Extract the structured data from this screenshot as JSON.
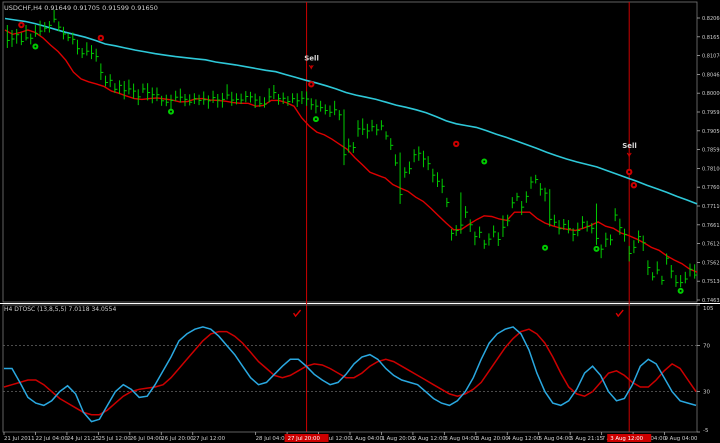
{
  "chart_data": {
    "type": "line",
    "main_header": "USDCHF,H4  0.91649 0.91705 0.91599 0.91650",
    "osc_header": "H4 DTOSC (13,8,5,5) 7.0118 34.0554",
    "price_axis": [
      "0.82060",
      "0.81655",
      "0.81070",
      "0.80465",
      "0.80000",
      "0.79595",
      "0.79050",
      "0.78595",
      "0.78100",
      "0.77605",
      "0.77110",
      "0.76615",
      "0.76120",
      "0.75625",
      "0.75130",
      "0.74635"
    ],
    "osc_axis": [
      "105",
      "70",
      "30",
      "-5"
    ],
    "time_labels": [
      "21 Jul 2011",
      "22 Jul 04:00",
      "24 Jul 21:25",
      "25 Jul 12:00",
      "26 Jul 04:00",
      "26 Jul 20:00",
      "27 Jul 12:00",
      "28 Jul 04:00",
      "28 Jul 20:00",
      "29 Jul 12:00",
      "1 Aug 04:00",
      "1 Aug 20:00",
      "2 Aug 12:00",
      "3 Aug 04:00",
      "3 Aug 20:00",
      "4 Aug 12:00",
      "5 Aug 04:00",
      "5 Aug 21:15",
      "7 Aug 12:00",
      "8 Aug 04:00",
      "9 Aug 04:00"
    ],
    "highlight_labels": [
      "27 Jul 20:00",
      "3 Aug 12:00"
    ],
    "sell_label": "Sell",
    "colors": {
      "background": "#000000",
      "bars": "#00cc00",
      "fast_ma": "#dd0000",
      "slow_ma": "#2ec8d8",
      "vline": "#cc0000",
      "dots": "#00cc00",
      "sell_arrow": "#cc0000",
      "osc_signal": "#cc0000",
      "osc_main": "#2aa8e0",
      "grid": "#666666"
    },
    "bars": [
      [
        0.8183,
        0.8226,
        0.8162
      ],
      [
        0.8187,
        0.8212,
        0.8165
      ],
      [
        0.8199,
        0.8215,
        0.8174
      ],
      [
        0.818,
        0.8205,
        0.817
      ],
      [
        0.819,
        0.8226,
        0.8183
      ],
      [
        0.8189,
        0.8202,
        0.8172
      ],
      [
        0.8202,
        0.8226,
        0.8193
      ],
      [
        0.8209,
        0.8238,
        0.8196
      ],
      [
        0.8217,
        0.8234,
        0.8206
      ],
      [
        0.8225,
        0.8237,
        0.8205
      ],
      [
        0.8242,
        0.8268,
        0.8233
      ],
      [
        0.822,
        0.8236,
        0.8208
      ],
      [
        0.8201,
        0.8221,
        0.8186
      ],
      [
        0.8191,
        0.8203,
        0.8181
      ],
      [
        0.8186,
        0.8205,
        0.8172
      ],
      [
        0.816,
        0.8185,
        0.8144
      ],
      [
        0.8146,
        0.8162,
        0.8134
      ],
      [
        0.8153,
        0.8178,
        0.8141
      ],
      [
        0.8147,
        0.817,
        0.8131
      ],
      [
        0.8138,
        0.816,
        0.8124
      ],
      [
        0.8094,
        0.8119,
        0.8073
      ],
      [
        0.8066,
        0.8085,
        0.8055
      ],
      [
        0.8072,
        0.8089,
        0.8053
      ],
      [
        0.8047,
        0.8064,
        0.8037
      ],
      [
        0.8058,
        0.8072,
        0.8034
      ],
      [
        0.8043,
        0.807,
        0.8019
      ],
      [
        0.8048,
        0.8074,
        0.8033
      ],
      [
        0.8042,
        0.8063,
        0.8021
      ],
      [
        0.8026,
        0.8047,
        0.8003
      ],
      [
        0.8048,
        0.8063,
        0.8037
      ],
      [
        0.8038,
        0.8064,
        0.8016
      ],
      [
        0.8032,
        0.8052,
        0.8008
      ],
      [
        0.8032,
        0.8052,
        0.8014
      ],
      [
        0.8015,
        0.8029,
        0.8001
      ],
      [
        0.8011,
        0.8032,
        0.8
      ],
      [
        0.8016,
        0.8032,
        0.7991
      ],
      [
        0.8025,
        0.8043,
        0.8014
      ],
      [
        0.8025,
        0.8049,
        0.801
      ],
      [
        0.8019,
        0.8034,
        0.8
      ],
      [
        0.8011,
        0.8033,
        0.8002
      ],
      [
        0.8021,
        0.8036,
        0.8006
      ],
      [
        0.8016,
        0.8032,
        0.8003
      ],
      [
        0.8018,
        0.8041,
        0.8004
      ],
      [
        0.8015,
        0.803,
        0.7993
      ],
      [
        0.8024,
        0.8043,
        0.8009
      ],
      [
        0.8017,
        0.8034,
        0.7996
      ],
      [
        0.8019,
        0.8037,
        0.7996
      ],
      [
        0.8031,
        0.8061,
        0.8019
      ],
      [
        0.8017,
        0.804,
        0.8001
      ],
      [
        0.8019,
        0.8036,
        0.8005
      ],
      [
        0.8017,
        0.8035,
        0.8006
      ],
      [
        0.8027,
        0.8042,
        0.8011
      ],
      [
        0.8026,
        0.804,
        0.801
      ],
      [
        0.8017,
        0.8035,
        0.7995
      ],
      [
        0.8007,
        0.8028,
        0.7998
      ],
      [
        0.8006,
        0.8025,
        0.7996
      ],
      [
        0.8026,
        0.805,
        0.8011
      ],
      [
        0.8038,
        0.8059,
        0.802
      ],
      [
        0.8021,
        0.8034,
        0.8004
      ],
      [
        0.8022,
        0.8038,
        0.8006
      ],
      [
        0.8013,
        0.8028,
        0.8001
      ],
      [
        0.8021,
        0.8036,
        0.8009
      ],
      [
        0.8015,
        0.8036,
        0.7998
      ],
      [
        0.8022,
        0.8042,
        0.8006
      ],
      [
        0.802,
        0.8041,
        0.8001
      ],
      [
        0.8004,
        0.8022,
        0.799
      ],
      [
        0.8,
        0.8019,
        0.798
      ],
      [
        0.7996,
        0.8015,
        0.7985
      ],
      [
        0.7988,
        0.8005,
        0.7977
      ],
      [
        0.7983,
        0.8002,
        0.797
      ],
      [
        0.799,
        0.8015,
        0.7975
      ],
      [
        0.7976,
        0.7989,
        0.7961
      ],
      [
        0.7865,
        0.7991,
        0.7836
      ],
      [
        0.7889,
        0.791,
        0.7871
      ],
      [
        0.7885,
        0.79,
        0.787
      ],
      [
        0.7937,
        0.7961,
        0.7915
      ],
      [
        0.7936,
        0.7966,
        0.792
      ],
      [
        0.7931,
        0.7951,
        0.791
      ],
      [
        0.7943,
        0.7962,
        0.793
      ],
      [
        0.7934,
        0.795,
        0.7919
      ],
      [
        0.7945,
        0.7961,
        0.7933
      ],
      [
        0.7917,
        0.793,
        0.7907
      ],
      [
        0.7891,
        0.7911,
        0.7878
      ],
      [
        0.7842,
        0.7866,
        0.7834
      ],
      [
        0.7754,
        0.7871,
        0.7728
      ],
      [
        0.7816,
        0.783,
        0.7801
      ],
      [
        0.7826,
        0.7846,
        0.7811
      ],
      [
        0.7865,
        0.788,
        0.7844
      ],
      [
        0.7869,
        0.7888,
        0.7848
      ],
      [
        0.7853,
        0.7876,
        0.783
      ],
      [
        0.784,
        0.7861,
        0.7822
      ],
      [
        0.7808,
        0.7826,
        0.7788
      ],
      [
        0.7791,
        0.7816,
        0.7775
      ],
      [
        0.7777,
        0.7798,
        0.7758
      ],
      [
        0.7732,
        0.7745,
        0.7719
      ],
      [
        0.7646,
        0.7658,
        0.7626
      ],
      [
        0.7654,
        0.7669,
        0.7639
      ],
      [
        0.7669,
        0.776,
        0.7645
      ],
      [
        0.7705,
        0.7722,
        0.7689
      ],
      [
        0.767,
        0.7685,
        0.765
      ],
      [
        0.7637,
        0.7651,
        0.7613
      ],
      [
        0.7649,
        0.7665,
        0.7633
      ],
      [
        0.7616,
        0.7628,
        0.7603
      ],
      [
        0.763,
        0.7646,
        0.7612
      ],
      [
        0.765,
        0.7668,
        0.7635
      ],
      [
        0.7629,
        0.7649,
        0.7611
      ],
      [
        0.7663,
        0.7696,
        0.7636
      ],
      [
        0.7681,
        0.7698,
        0.7666
      ],
      [
        0.7731,
        0.7747,
        0.7716
      ],
      [
        0.7748,
        0.7759,
        0.7736
      ],
      [
        0.7719,
        0.7736,
        0.7697
      ],
      [
        0.7749,
        0.7763,
        0.7731
      ],
      [
        0.7789,
        0.7804,
        0.777
      ],
      [
        0.7796,
        0.7809,
        0.7785
      ],
      [
        0.7769,
        0.7786,
        0.7751
      ],
      [
        0.7758,
        0.7773,
        0.7735
      ],
      [
        0.7685,
        0.7769,
        0.7665
      ],
      [
        0.7677,
        0.7698,
        0.7667
      ],
      [
        0.7659,
        0.7683,
        0.7643
      ],
      [
        0.7671,
        0.7686,
        0.7656
      ],
      [
        0.7659,
        0.7683,
        0.7646
      ],
      [
        0.7643,
        0.766,
        0.7624
      ],
      [
        0.7654,
        0.7676,
        0.7638
      ],
      [
        0.7677,
        0.7694,
        0.7658
      ],
      [
        0.7665,
        0.7681,
        0.7651
      ],
      [
        0.766,
        0.7675,
        0.7646
      ],
      [
        0.7632,
        0.7729,
        0.7614
      ],
      [
        0.7602,
        0.7615,
        0.7577
      ],
      [
        0.763,
        0.7648,
        0.7608
      ],
      [
        0.7628,
        0.7643,
        0.7613
      ],
      [
        0.7697,
        0.7716,
        0.768
      ],
      [
        0.7662,
        0.7687,
        0.7642
      ],
      [
        0.7643,
        0.7659,
        0.7623
      ],
      [
        0.759,
        0.7611,
        0.7568
      ],
      [
        0.7607,
        0.7627,
        0.7591
      ],
      [
        0.7637,
        0.7654,
        0.7619
      ],
      [
        0.762,
        0.764,
        0.7597
      ],
      [
        0.7551,
        0.7571,
        0.753
      ],
      [
        0.7525,
        0.7538,
        0.7515
      ],
      [
        0.7544,
        0.7568,
        0.7532
      ],
      [
        0.7515,
        0.7528,
        0.7503
      ],
      [
        0.7577,
        0.759,
        0.7559
      ],
      [
        0.7541,
        0.7558,
        0.7521
      ],
      [
        0.7509,
        0.753,
        0.7497
      ],
      [
        0.7509,
        0.753,
        0.7496
      ],
      [
        0.7519,
        0.7539,
        0.7507
      ],
      [
        0.7546,
        0.7562,
        0.7526
      ],
      [
        0.753,
        0.756,
        0.752
      ]
    ],
    "fast_ma": [
      0.8212,
      0.82,
      0.8205,
      0.8212,
      0.8205,
      0.819,
      0.817,
      0.8152,
      0.8128,
      0.8095,
      0.8076,
      0.8068,
      0.8062,
      0.8055,
      0.8042,
      0.8036,
      0.8028,
      0.8021,
      0.8019,
      0.8021,
      0.8023,
      0.802,
      0.8017,
      0.8012,
      0.8013,
      0.802,
      0.8021,
      0.8017,
      0.8016,
      0.8014,
      0.801,
      0.8008,
      0.8008,
      0.8,
      0.8002,
      0.8016,
      0.8016,
      0.801,
      0.8,
      0.7968,
      0.7945,
      0.7928,
      0.792,
      0.7908,
      0.7894,
      0.788,
      0.7857,
      0.7837,
      0.7816,
      0.7808,
      0.78,
      0.7782,
      0.7772,
      0.7763,
      0.7747,
      0.7735,
      0.7716,
      0.7695,
      0.7675,
      0.7656,
      0.7657,
      0.7671,
      0.7684,
      0.7695,
      0.7693,
      0.7686,
      0.7682,
      0.7705,
      0.7705,
      0.7705,
      0.7687,
      0.7675,
      0.7667,
      0.7661,
      0.7657,
      0.7654,
      0.766,
      0.7668,
      0.7678,
      0.7666,
      0.766,
      0.7647,
      0.764,
      0.7631,
      0.762,
      0.7607,
      0.7599,
      0.7584,
      0.7572,
      0.7562,
      0.7547,
      0.7538
    ],
    "slow_ma": [
      0.8244,
      0.824,
      0.8236,
      0.823,
      0.8222,
      0.8214,
      0.8206,
      0.8199,
      0.8192,
      0.8183,
      0.8173,
      0.8168,
      0.8162,
      0.8156,
      0.8151,
      0.8146,
      0.8142,
      0.8138,
      0.8135,
      0.8132,
      0.8129,
      0.8123,
      0.8119,
      0.8115,
      0.811,
      0.8105,
      0.81,
      0.8096,
      0.8088,
      0.808,
      0.8072,
      0.8065,
      0.8057,
      0.8048,
      0.8038,
      0.8031,
      0.8025,
      0.8019,
      0.8011,
      0.8003,
      0.7997,
      0.799,
      0.7982,
      0.7971,
      0.7959,
      0.7951,
      0.7946,
      0.7941,
      0.7932,
      0.7922,
      0.7913,
      0.7903,
      0.7893,
      0.7883,
      0.7872,
      0.7862,
      0.7853,
      0.7845,
      0.7838,
      0.7831,
      0.7821,
      0.7811,
      0.7801,
      0.7791,
      0.778,
      0.777,
      0.776,
      0.7749,
      0.7739,
      0.7728
    ],
    "green_dots": [
      [
        6,
        0.8166
      ],
      [
        35,
        0.7985
      ],
      [
        66,
        0.7964
      ],
      [
        102,
        0.7846
      ],
      [
        115,
        0.7606
      ],
      [
        126,
        0.7603
      ],
      [
        144,
        0.7486
      ]
    ],
    "sell_arrows": [
      [
        3,
        0.8226,
        false
      ],
      [
        20,
        0.819,
        false
      ],
      [
        65,
        0.8061,
        true
      ],
      [
        96,
        0.7895,
        false
      ],
      [
        133,
        0.7817,
        true
      ],
      [
        134,
        0.778,
        false
      ],
      [
        160,
        0.7679,
        false
      ]
    ],
    "vlines": [
      64,
      133
    ],
    "osc_main": [
      50,
      50,
      38,
      25,
      20,
      18,
      22,
      30,
      35,
      28,
      12,
      4,
      6,
      18,
      30,
      36,
      32,
      25,
      26,
      36,
      48,
      60,
      74,
      80,
      84,
      86,
      84,
      78,
      70,
      62,
      52,
      42,
      36,
      38,
      45,
      52,
      58,
      58,
      52,
      45,
      40,
      36,
      38,
      45,
      54,
      60,
      62,
      58,
      50,
      44,
      40,
      38,
      36,
      30,
      24,
      20,
      18,
      22,
      30,
      42,
      58,
      72,
      80,
      84,
      86,
      80,
      66,
      46,
      30,
      20,
      18,
      22,
      32,
      46,
      52,
      44,
      30,
      22,
      24,
      36,
      52,
      58,
      54,
      42,
      30,
      22,
      20,
      18
    ],
    "osc_signal": [
      34,
      36,
      38,
      40,
      40,
      36,
      30,
      24,
      20,
      16,
      12,
      10,
      10,
      14,
      20,
      26,
      30,
      32,
      33,
      34,
      36,
      42,
      50,
      58,
      66,
      74,
      80,
      82,
      82,
      78,
      72,
      64,
      56,
      50,
      44,
      42,
      44,
      48,
      52,
      54,
      53,
      50,
      46,
      42,
      42,
      46,
      52,
      56,
      58,
      56,
      52,
      48,
      44,
      40,
      36,
      32,
      28,
      26,
      28,
      32,
      38,
      48,
      58,
      68,
      76,
      82,
      84,
      80,
      72,
      60,
      46,
      34,
      28,
      26,
      30,
      38,
      46,
      48,
      44,
      38,
      34,
      34,
      40,
      48,
      54,
      50,
      40,
      30
    ]
  }
}
